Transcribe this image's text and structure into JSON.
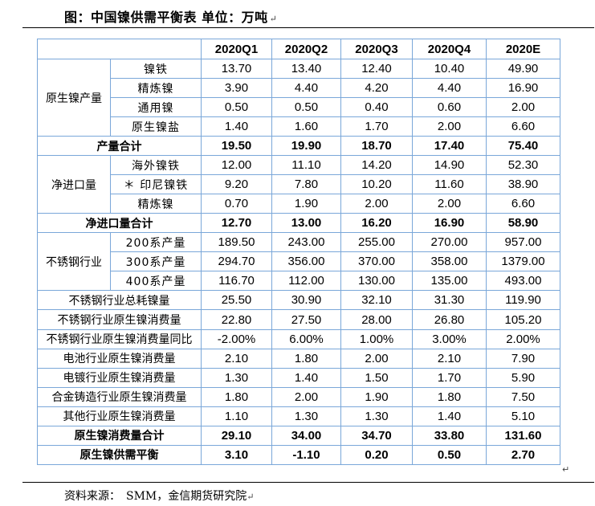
{
  "title": "图：中国镍供需平衡表 单位：万吨",
  "para_mark": "↵",
  "source": "资料来源：　SMM，金信期货研究院",
  "columns": [
    "2020Q1",
    "2020Q2",
    "2020Q3",
    "2020Q4",
    "2020E"
  ],
  "groups": {
    "primary": {
      "label": "原生镍产量",
      "rows": [
        {
          "label": "镍铁",
          "values": [
            "13.70",
            "13.40",
            "12.40",
            "10.40",
            "49.90"
          ]
        },
        {
          "label": "精炼镍",
          "values": [
            "3.90",
            "4.40",
            "4.20",
            "4.40",
            "16.90"
          ]
        },
        {
          "label": "通用镍",
          "values": [
            "0.50",
            "0.50",
            "0.40",
            "0.60",
            "2.00"
          ]
        },
        {
          "label": "原生镍盐",
          "values": [
            "1.40",
            "1.60",
            "1.70",
            "2.00",
            "6.60"
          ]
        }
      ],
      "total": {
        "label": "产量合计",
        "values": [
          "19.50",
          "19.90",
          "18.70",
          "17.40",
          "75.40"
        ]
      }
    },
    "import": {
      "label": "净进口量",
      "rows": [
        {
          "label": "海外镍铁",
          "values": [
            "12.00",
            "11.10",
            "14.20",
            "14.90",
            "52.30"
          ]
        },
        {
          "label": "＊ 印尼镍铁",
          "values": [
            "9.20",
            "7.80",
            "10.20",
            "11.60",
            "38.90"
          ]
        },
        {
          "label": "精炼镍",
          "values": [
            "0.70",
            "1.90",
            "2.00",
            "2.00",
            "6.60"
          ]
        }
      ],
      "total": {
        "label": "净进口量合计",
        "values": [
          "12.70",
          "13.00",
          "16.20",
          "16.90",
          "58.90"
        ]
      }
    },
    "stainless": {
      "label": "不锈钢行业",
      "rows": [
        {
          "label": "200系产量",
          "values": [
            "189.50",
            "243.00",
            "255.00",
            "270.00",
            "957.00"
          ]
        },
        {
          "label": "300系产量",
          "values": [
            "294.70",
            "356.00",
            "370.00",
            "358.00",
            "1379.00"
          ]
        },
        {
          "label": "400系产量",
          "values": [
            "116.70",
            "112.00",
            "130.00",
            "135.00",
            "493.00"
          ]
        }
      ]
    }
  },
  "consumption_rows": [
    {
      "label": "不锈钢行业总耗镍量",
      "values": [
        "25.50",
        "30.90",
        "32.10",
        "31.30",
        "119.90"
      ]
    },
    {
      "label": "不锈钢行业原生镍消费量",
      "values": [
        "22.80",
        "27.50",
        "28.00",
        "26.80",
        "105.20"
      ]
    },
    {
      "label": "不锈钢行业原生镍消费量同比",
      "values": [
        "-2.00%",
        "6.00%",
        "1.00%",
        "3.00%",
        "2.00%"
      ]
    },
    {
      "label": "电池行业原生镍消费量",
      "values": [
        "2.10",
        "1.80",
        "2.00",
        "2.10",
        "7.90"
      ]
    },
    {
      "label": "电镀行业原生镍消费量",
      "values": [
        "1.30",
        "1.40",
        "1.50",
        "1.70",
        "5.90"
      ]
    },
    {
      "label": "合金铸造行业原生镍消费量",
      "values": [
        "1.80",
        "2.00",
        "1.90",
        "1.80",
        "7.50"
      ]
    },
    {
      "label": "其他行业原生镍消费量",
      "values": [
        "1.10",
        "1.30",
        "1.30",
        "1.40",
        "5.10"
      ]
    }
  ],
  "consumption_total": {
    "label": "原生镍消费量合计",
    "values": [
      "29.10",
      "34.00",
      "34.70",
      "33.80",
      "131.60"
    ]
  },
  "balance": {
    "label": "原生镍供需平衡",
    "values": [
      "3.10",
      "-1.10",
      "0.20",
      "0.50",
      "2.70"
    ]
  }
}
